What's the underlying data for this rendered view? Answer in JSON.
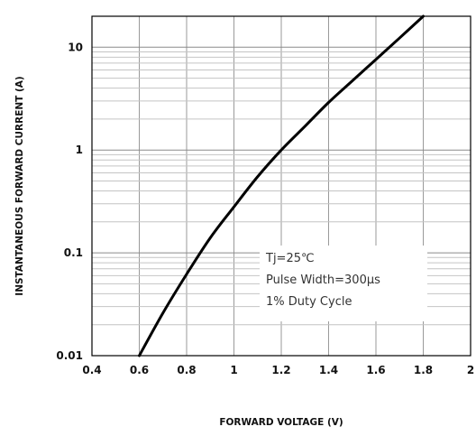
{
  "chart_data": {
    "type": "line",
    "title": "",
    "xlabel": "FORWARD VOLTAGE (V)",
    "ylabel": "INSTANTANEOUS FORWARD CURRENT (A)",
    "x_scale": "linear",
    "y_scale": "log",
    "xlim": [
      0.4,
      2
    ],
    "ylim": [
      0.01,
      20
    ],
    "x_ticks": [
      0.4,
      0.6,
      0.8,
      1,
      1.2,
      1.4,
      1.6,
      1.8,
      2
    ],
    "x_tick_labels": [
      "0.4",
      "0.6",
      "0.8",
      "1",
      "1.2",
      "1.4",
      "1.6",
      "1.8",
      "2"
    ],
    "y_ticks": [
      0.01,
      0.1,
      1,
      10
    ],
    "y_tick_labels": [
      "0.01",
      "0.1",
      "1",
      "10"
    ],
    "grid": true,
    "legend": "none",
    "series": [
      {
        "x": [
          0.6,
          0.7,
          0.8,
          0.9,
          1.0,
          1.1,
          1.2,
          1.3,
          1.4,
          1.5,
          1.6,
          1.7,
          1.8
        ],
        "y": [
          0.01,
          0.026,
          0.062,
          0.14,
          0.28,
          0.55,
          1.0,
          1.7,
          2.9,
          4.7,
          7.6,
          12.3,
          20
        ]
      }
    ],
    "annotations": [
      "Tj=25℃",
      "Pulse Width=300μs",
      "1% Duty Cycle"
    ]
  }
}
